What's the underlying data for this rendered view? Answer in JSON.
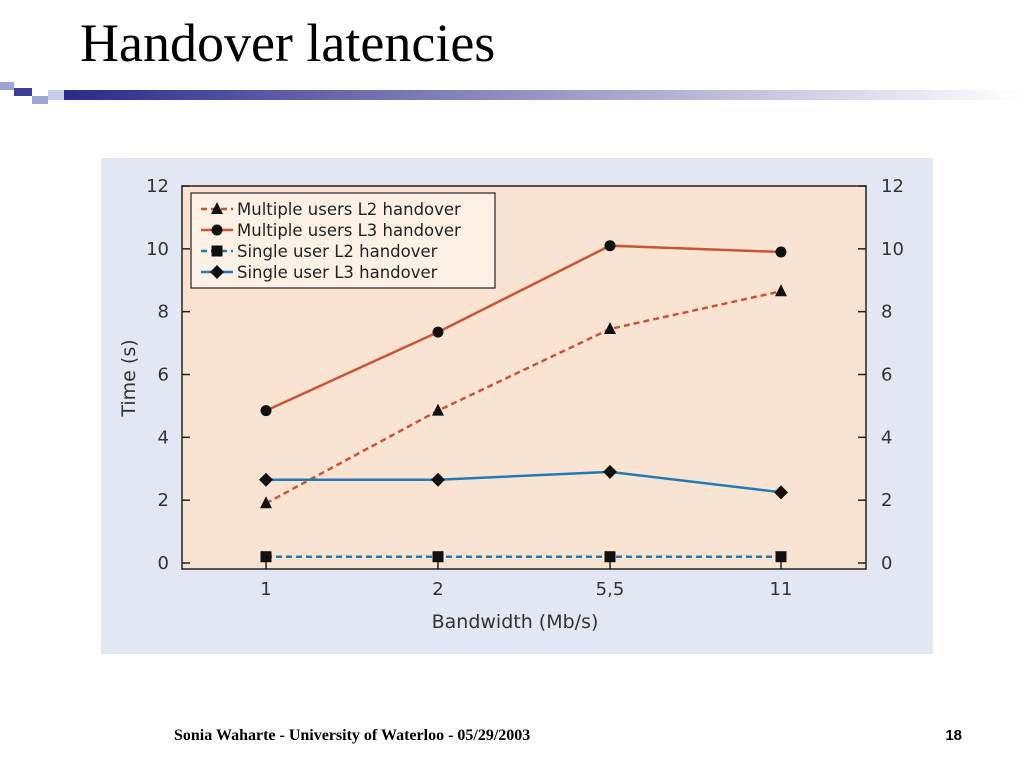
{
  "slide": {
    "title": "Handover latencies",
    "footer": "Sonia Waharte - University of Waterloo - 05/29/2003",
    "page_number": "18"
  },
  "colors": {
    "l2_multi": "#c8553a",
    "l3_multi": "#c8553a",
    "l2_single": "#1f7ab5",
    "l3_single": "#1f7ab5",
    "plot_bg": "#fbe3d2",
    "panel_bg": "#e3e7f3"
  },
  "chart_data": {
    "type": "line",
    "title": "",
    "xlabel": "Bandwidth (Mb/s)",
    "ylabel": "Time (s)",
    "categories": [
      "1",
      "2",
      "5,5",
      "11"
    ],
    "ylim": [
      0,
      12
    ],
    "yticks": [
      0,
      2,
      4,
      6,
      8,
      10,
      12
    ],
    "secondary_y_axis": true,
    "grid": false,
    "legend_position": "top-left",
    "series": [
      {
        "name": "Multiple users L2 handover",
        "values": [
          1.9,
          4.85,
          7.45,
          8.65
        ],
        "marker": "triangle",
        "line": "dashed",
        "color": "#c8553a"
      },
      {
        "name": "Multiple users L3 handover",
        "values": [
          4.85,
          7.35,
          10.1,
          9.9
        ],
        "marker": "circle",
        "line": "solid",
        "color": "#c8553a"
      },
      {
        "name": "Single user L2 handover",
        "values": [
          0.2,
          0.2,
          0.2,
          0.2
        ],
        "marker": "square",
        "line": "dashed",
        "color": "#1f7ab5"
      },
      {
        "name": "Single user L3 handover",
        "values": [
          2.65,
          2.65,
          2.9,
          2.25
        ],
        "marker": "diamond",
        "line": "solid",
        "color": "#1f7ab5"
      }
    ]
  }
}
